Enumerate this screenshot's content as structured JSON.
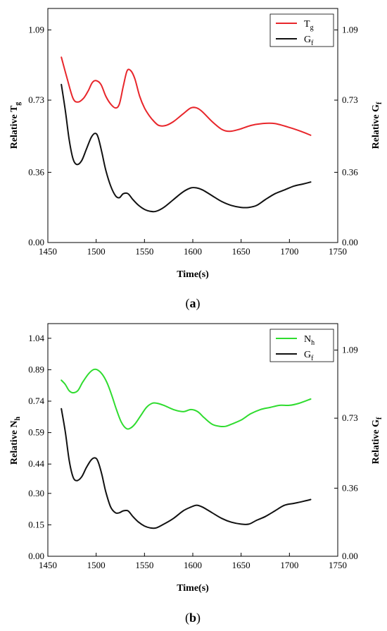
{
  "chart_data": [
    {
      "type": "line",
      "caption": "(a)",
      "caption_letter": "a",
      "xlabel": "Time(s)",
      "xlim": [
        1450,
        1750
      ],
      "xticks": [
        "1450",
        "1500",
        "1550",
        "1600",
        "1650",
        "1700",
        "1750"
      ],
      "ylabel_left": "Relative T",
      "ylabel_left_sub": "g",
      "ylim_left": [
        0.0,
        1.2
      ],
      "yticks_left": [
        "0.00",
        "0.36",
        "0.73",
        "1.09"
      ],
      "ylabel_right": "Relative G",
      "ylabel_right_sub": "f",
      "ylim_right": [
        0.0,
        1.2
      ],
      "yticks_right": [
        "0.00",
        "0.36",
        "0.73",
        "1.09"
      ],
      "legend_position": "top-right",
      "grid": false,
      "series": [
        {
          "name": "T",
          "name_sub": "g",
          "color": "#e8262b",
          "axis": "left",
          "x": [
            1464,
            1470,
            1476,
            1481,
            1487,
            1492,
            1496,
            1500,
            1505,
            1510,
            1515,
            1520,
            1524,
            1528,
            1532,
            1536,
            1540,
            1545,
            1550,
            1555,
            1560,
            1565,
            1572,
            1580,
            1590,
            1598,
            1604,
            1610,
            1620,
            1630,
            1638,
            1648,
            1660,
            1672,
            1685,
            1700,
            1712,
            1722
          ],
          "y": [
            0.95,
            0.84,
            0.74,
            0.72,
            0.74,
            0.78,
            0.82,
            0.83,
            0.81,
            0.75,
            0.71,
            0.69,
            0.71,
            0.8,
            0.88,
            0.88,
            0.84,
            0.75,
            0.69,
            0.65,
            0.62,
            0.6,
            0.6,
            0.62,
            0.66,
            0.69,
            0.69,
            0.67,
            0.62,
            0.58,
            0.57,
            0.58,
            0.6,
            0.61,
            0.61,
            0.59,
            0.57,
            0.55
          ]
        },
        {
          "name": "G",
          "name_sub": "f",
          "color": "#111111",
          "axis": "right",
          "x": [
            1464,
            1468,
            1472,
            1476,
            1480,
            1485,
            1490,
            1495,
            1499,
            1502,
            1506,
            1510,
            1515,
            1520,
            1524,
            1528,
            1533,
            1538,
            1544,
            1550,
            1556,
            1562,
            1570,
            1580,
            1590,
            1598,
            1604,
            1610,
            1620,
            1630,
            1640,
            1650,
            1658,
            1666,
            1675,
            1685,
            1695,
            1705,
            1714,
            1722
          ],
          "y": [
            0.81,
            0.68,
            0.53,
            0.43,
            0.4,
            0.42,
            0.48,
            0.54,
            0.56,
            0.54,
            0.46,
            0.37,
            0.29,
            0.24,
            0.23,
            0.25,
            0.25,
            0.22,
            0.19,
            0.17,
            0.16,
            0.16,
            0.18,
            0.22,
            0.26,
            0.28,
            0.28,
            0.27,
            0.24,
            0.21,
            0.19,
            0.18,
            0.18,
            0.19,
            0.22,
            0.25,
            0.27,
            0.29,
            0.3,
            0.31
          ]
        }
      ]
    },
    {
      "type": "line",
      "caption": "(b)",
      "caption_letter": "b",
      "xlabel": "Time(s)",
      "xlim": [
        1450,
        1750
      ],
      "xticks": [
        "1450",
        "1500",
        "1550",
        "1600",
        "1650",
        "1700",
        "1750"
      ],
      "ylabel_left": "Relative N",
      "ylabel_left_sub": "h",
      "ylim_left": [
        0.0,
        1.11
      ],
      "yticks_left": [
        "0.00",
        "0.15",
        "0.30",
        "0.44",
        "0.59",
        "0.74",
        "0.89",
        "1.04"
      ],
      "ylabel_right": "Relative G",
      "ylabel_right_sub": "f",
      "ylim_right": [
        0.0,
        1.23
      ],
      "yticks_right": [
        "0.00",
        "0.36",
        "0.73",
        "1.09"
      ],
      "legend_position": "top-right",
      "grid": false,
      "series": [
        {
          "name": "N",
          "name_sub": "h",
          "color": "#2fdc2f",
          "axis": "left",
          "x": [
            1464,
            1468,
            1472,
            1476,
            1481,
            1486,
            1492,
            1497,
            1501,
            1506,
            1511,
            1516,
            1521,
            1526,
            1531,
            1535,
            1540,
            1546,
            1552,
            1558,
            1563,
            1570,
            1580,
            1590,
            1598,
            1605,
            1612,
            1620,
            1628,
            1634,
            1640,
            1650,
            1660,
            1670,
            1680,
            1690,
            1700,
            1710,
            1722
          ],
          "y": [
            0.84,
            0.82,
            0.79,
            0.78,
            0.79,
            0.83,
            0.87,
            0.89,
            0.89,
            0.87,
            0.83,
            0.77,
            0.7,
            0.64,
            0.61,
            0.61,
            0.63,
            0.67,
            0.71,
            0.73,
            0.73,
            0.72,
            0.7,
            0.69,
            0.7,
            0.69,
            0.66,
            0.63,
            0.62,
            0.62,
            0.63,
            0.65,
            0.68,
            0.7,
            0.71,
            0.72,
            0.72,
            0.73,
            0.75
          ]
        },
        {
          "name": "G",
          "name_sub": "f",
          "color": "#111111",
          "axis": "right",
          "x": [
            1464,
            1468,
            1472,
            1476,
            1480,
            1485,
            1490,
            1495,
            1499,
            1502,
            1506,
            1510,
            1515,
            1520,
            1524,
            1528,
            1533,
            1538,
            1544,
            1550,
            1556,
            1562,
            1570,
            1580,
            1590,
            1598,
            1604,
            1610,
            1620,
            1630,
            1640,
            1650,
            1658,
            1666,
            1675,
            1685,
            1695,
            1705,
            1714,
            1722
          ],
          "y": [
            0.78,
            0.66,
            0.51,
            0.42,
            0.4,
            0.42,
            0.47,
            0.51,
            0.52,
            0.5,
            0.43,
            0.34,
            0.26,
            0.23,
            0.23,
            0.24,
            0.24,
            0.21,
            0.18,
            0.16,
            0.15,
            0.15,
            0.17,
            0.2,
            0.24,
            0.26,
            0.27,
            0.26,
            0.23,
            0.2,
            0.18,
            0.17,
            0.17,
            0.19,
            0.21,
            0.24,
            0.27,
            0.28,
            0.29,
            0.3
          ]
        }
      ]
    }
  ]
}
